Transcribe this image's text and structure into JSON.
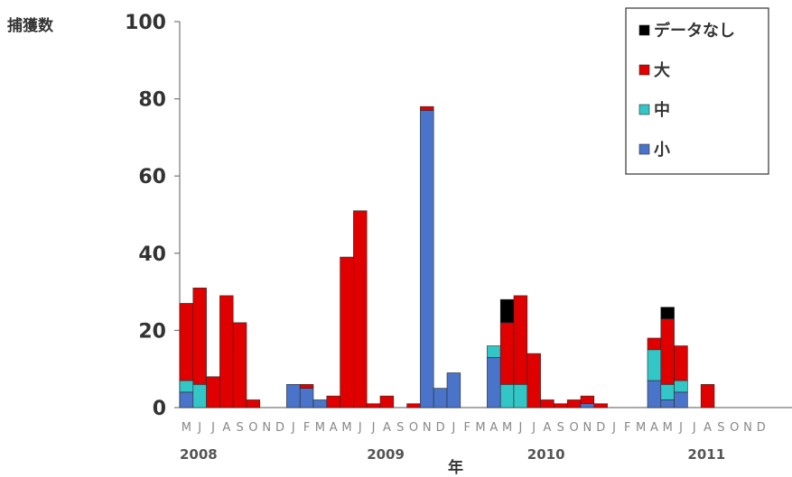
{
  "chart_data": {
    "type": "bar",
    "stacked": true,
    "ylabel": "捕獲数",
    "xlabel": "年",
    "ylim": [
      0,
      100
    ],
    "yticks": [
      0,
      20,
      40,
      60,
      80,
      100
    ],
    "grid": false,
    "legend_position": "top-right",
    "month_letters": [
      "M",
      "J",
      "J",
      "A",
      "S",
      "O",
      "N",
      "D",
      "J",
      "F",
      "M",
      "A",
      "M",
      "J",
      "J",
      "A",
      "S",
      "O",
      "N",
      "D",
      "J",
      "F",
      "M",
      "A",
      "M",
      "J",
      "J",
      "A",
      "S",
      "O",
      "N",
      "D",
      "J",
      "F",
      "M",
      "A",
      "M",
      "J",
      "J",
      "A",
      "S",
      "O",
      "N",
      "D"
    ],
    "year_labels": [
      {
        "label": "2008",
        "month_index": 0
      },
      {
        "label": "2009",
        "month_index": 14
      },
      {
        "label": "2010",
        "month_index": 26
      },
      {
        "label": "2011",
        "month_index": 38
      }
    ],
    "series": [
      {
        "name": "小",
        "color": "#4a74c9",
        "values": [
          4,
          0,
          0,
          0,
          0,
          0,
          0,
          0,
          6,
          5,
          2,
          0,
          0,
          0,
          0,
          0,
          0,
          0,
          77,
          5,
          9,
          0,
          0,
          13,
          0,
          0,
          0,
          0,
          0,
          0,
          1,
          0,
          0,
          0,
          0,
          7,
          2,
          4,
          0,
          0,
          0,
          0,
          0,
          0
        ]
      },
      {
        "name": "中",
        "color": "#33c6c6",
        "values": [
          3,
          6,
          0,
          0,
          0,
          0,
          0,
          0,
          0,
          0,
          0,
          0,
          0,
          0,
          0,
          0,
          0,
          0,
          0,
          0,
          0,
          0,
          0,
          3,
          6,
          6,
          0,
          0,
          0,
          0,
          0,
          0,
          0,
          0,
          0,
          8,
          4,
          3,
          0,
          0,
          0,
          0,
          0,
          0
        ]
      },
      {
        "name": "大",
        "color": "#e00000",
        "values": [
          20,
          25,
          8,
          29,
          22,
          2,
          0,
          0,
          0,
          1,
          0,
          3,
          39,
          51,
          1,
          3,
          0,
          1,
          1,
          0,
          0,
          0,
          0,
          0,
          16,
          23,
          14,
          2,
          1,
          2,
          2,
          1,
          0,
          0,
          0,
          3,
          17,
          9,
          0,
          6,
          0,
          0,
          0,
          0
        ]
      },
      {
        "name": "データなし",
        "color": "#000000",
        "values": [
          0,
          0,
          0,
          0,
          0,
          0,
          0,
          0,
          0,
          0,
          0,
          0,
          0,
          0,
          0,
          0,
          0,
          0,
          0,
          0,
          0,
          0,
          0,
          0,
          6,
          0,
          0,
          0,
          0,
          0,
          0,
          0,
          0,
          0,
          0,
          0,
          3,
          0,
          0,
          0,
          0,
          0,
          0,
          0
        ]
      }
    ],
    "legend_order": [
      "データなし",
      "大",
      "中",
      "小"
    ]
  }
}
